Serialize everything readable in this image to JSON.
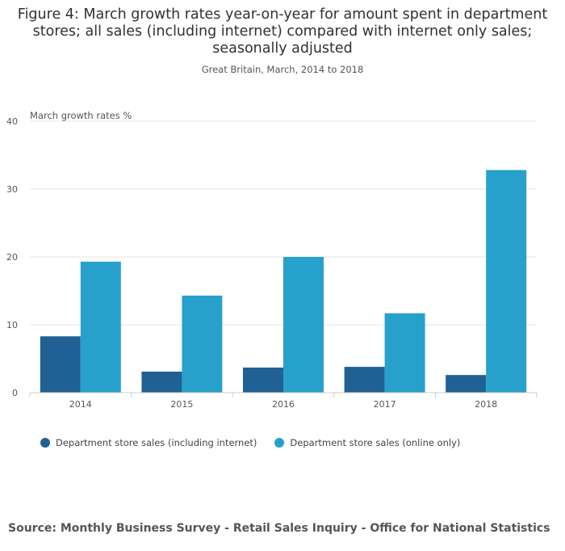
{
  "title": "Figure 4: March growth rates year-on-year for amount spent in department stores; all sales (including internet) compared with internet only sales; seasonally adjusted",
  "subtitle": "Great Britain, March, 2014 to 2018",
  "source": "Source: Monthly Business Survey - Retail Sales Inquiry - Office for National Statistics",
  "colors": {
    "series1": "#206095",
    "series2": "#27a0cc",
    "grid": "#e5e5e5",
    "axis": "#cccccc"
  },
  "chart_data": {
    "type": "bar",
    "title": "Figure 4: March growth rates year-on-year for amount spent in department stores; all sales (including internet) compared with internet only sales; seasonally adjusted",
    "subtitle": "Great Britain, March, 2014 to 2018",
    "xlabel": "",
    "ylabel": "March growth rates %",
    "ylim": [
      0,
      40
    ],
    "yticks": [
      "0",
      "10",
      "20",
      "30",
      "40"
    ],
    "categories": [
      "2014",
      "2015",
      "2016",
      "2017",
      "2018"
    ],
    "series": [
      {
        "name": "Department store sales (including internet)",
        "values": [
          8.3,
          3.1,
          3.7,
          3.8,
          2.6
        ]
      },
      {
        "name": "Department store sales (online only)",
        "values": [
          19.3,
          14.3,
          20.0,
          11.7,
          32.8
        ]
      }
    ],
    "legend": "bottom-left",
    "grid": true
  }
}
